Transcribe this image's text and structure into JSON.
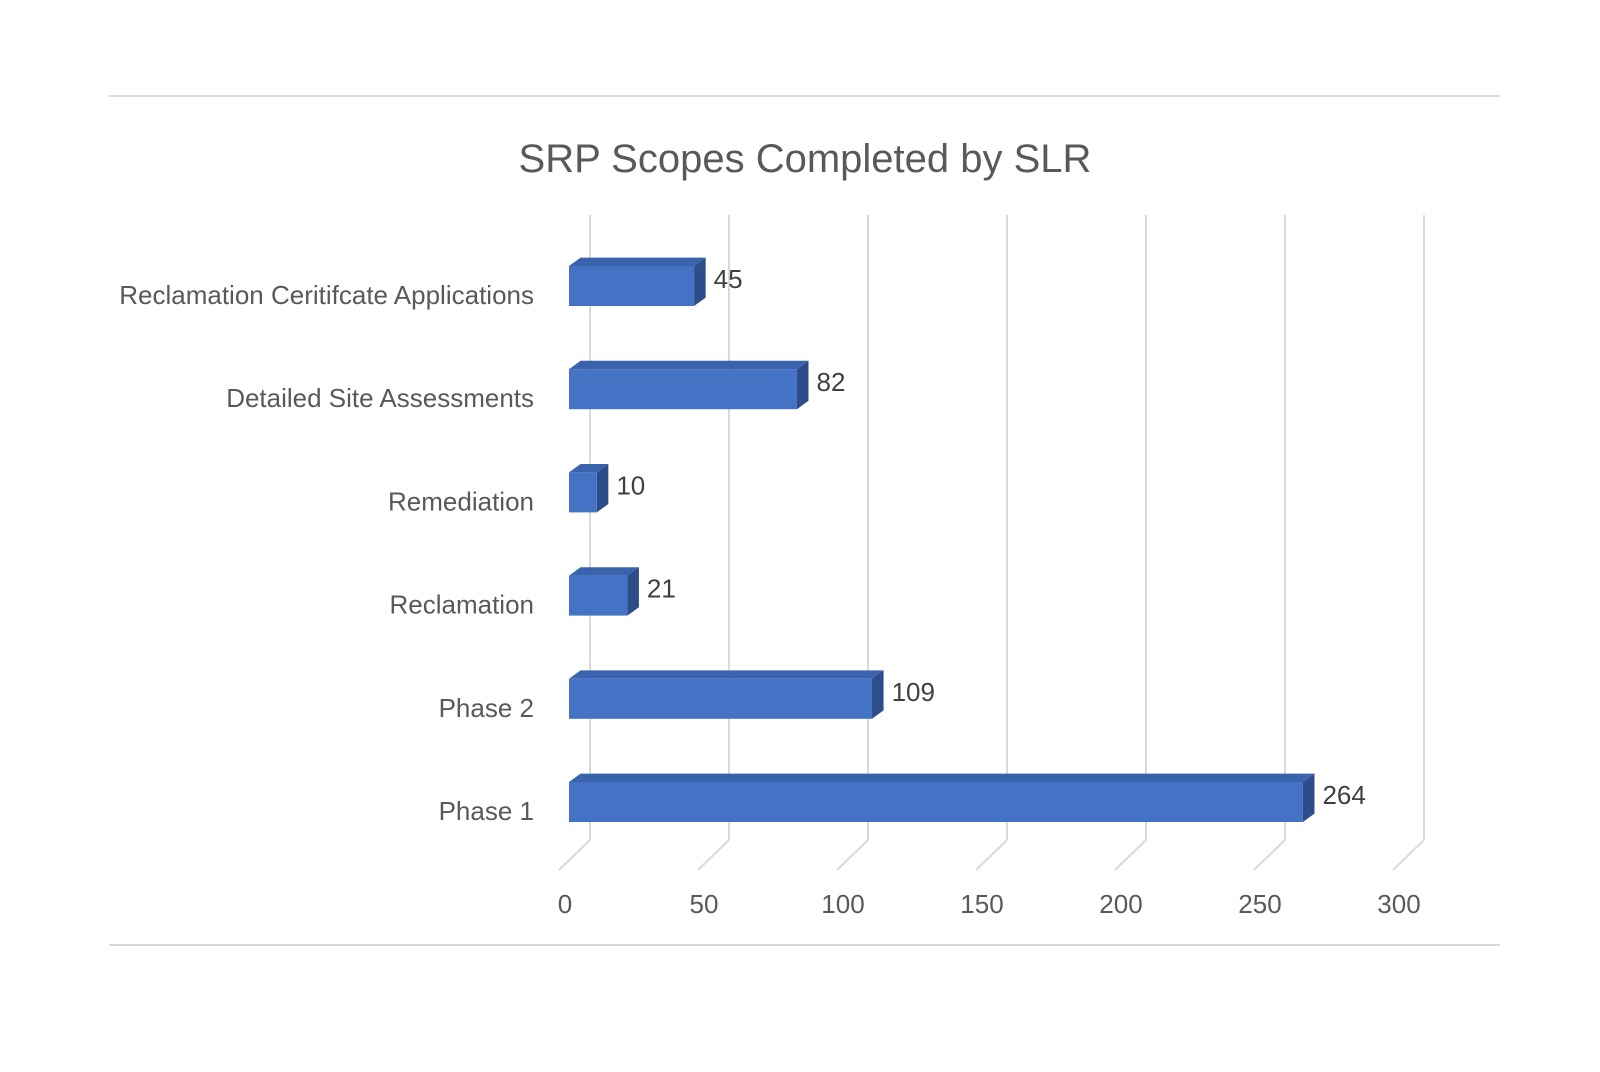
{
  "colors": {
    "bar_front": "#4472C4",
    "bar_top": "#3A63AE",
    "bar_side": "#2C4C8A",
    "grid": "#D9D9D9",
    "frame_line": "#D9D9D9",
    "title_text": "#595959",
    "label_text": "#595959",
    "value_text": "#404040"
  },
  "chart_data": {
    "type": "bar",
    "orientation": "horizontal",
    "style": "3d",
    "title": "SRP Scopes Completed by SLR",
    "xlabel": "",
    "ylabel": "",
    "xlim": [
      0,
      300
    ],
    "grid": true,
    "legend": "none",
    "x_ticks": [
      "0",
      "50",
      "100",
      "150",
      "200",
      "250",
      "300"
    ],
    "categories": [
      "Reclamation Ceritifcate Applications",
      "Detailed Site Assessments",
      "Remediation",
      "Reclamation",
      "Phase 2",
      "Phase 1"
    ],
    "values": [
      45,
      82,
      10,
      21,
      109,
      264
    ],
    "data_labels": [
      "45",
      "82",
      "10",
      "21",
      "109",
      "264"
    ]
  }
}
